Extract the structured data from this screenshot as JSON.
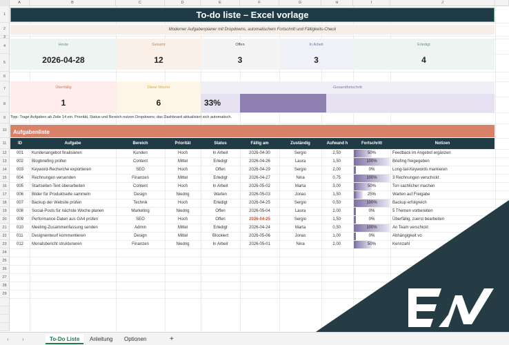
{
  "columns": [
    "A",
    "B",
    "C",
    "D",
    "E",
    "F",
    "G",
    "H",
    "I",
    "J"
  ],
  "rows": [
    "1",
    "2",
    "3",
    "4",
    "5",
    "6",
    "7",
    "8",
    "9",
    "10",
    "11",
    "12",
    "13",
    "14",
    "15",
    "16",
    "17",
    "18",
    "19",
    "20",
    "21",
    "22",
    "23",
    "24",
    "25",
    "26",
    "27",
    "28",
    "29"
  ],
  "title": "To-do liste – Excel vorlage",
  "subtitle": "Moderner Aufgabenplaner mit Dropdowns, automatischem Fortschritt und Fälligkeits-Check",
  "kpis": {
    "heute": {
      "label": "Heute",
      "value": "2026-04-28"
    },
    "gesamt": {
      "label": "Gesamt",
      "value": "12"
    },
    "offen": {
      "label": "Offen",
      "value": "3"
    },
    "inarbeit": {
      "label": "In Arbeit",
      "value": "3"
    },
    "erledigt": {
      "label": "Erledigt",
      "value": "4"
    },
    "ueberfaellig": {
      "label": "Überfällig",
      "value": "1"
    },
    "dieseWoche": {
      "label": "Diese Woche",
      "value": "6"
    },
    "gesamtfortschritt": {
      "label": "Gesamtfortschritt",
      "value": "33%",
      "fraction": 0.33
    }
  },
  "tip": "Tipp: Trage Aufgaben ab Zeile 14 ein. Priorität, Status und Bereich nutzen Dropdowns; das Dashboard aktualisiert sich automatisch.",
  "section": "Aufgabenliste",
  "headers": {
    "id": "ID",
    "task": "Aufgabe",
    "area": "Bereich",
    "prio": "Priorität",
    "status": "Status",
    "due": "Fällig am",
    "owner": "Zuständig",
    "effort": "Aufwand h",
    "progress": "Fortschritt",
    "notes": "Notizen"
  },
  "tasks": [
    {
      "id": "001",
      "task": "Kundenangebot finalisieren",
      "area": "Kunden",
      "prio": "Hoch",
      "status": "In Arbeit",
      "due": "2026-04-30",
      "owner": "Sergio",
      "effort": "2,50",
      "progress": "50%",
      "fraction": 0.5,
      "notes": "Feedback im Angebot ergänzen",
      "overdue": false
    },
    {
      "id": "002",
      "task": "Blogbriefing prüfen",
      "area": "Content",
      "prio": "Mittel",
      "status": "Erledigt",
      "due": "2026-04-26",
      "owner": "Laura",
      "effort": "1,50",
      "progress": "100%",
      "fraction": 1,
      "notes": "Briefing freigegeben",
      "overdue": false
    },
    {
      "id": "003",
      "task": "Keyword-Recherche exportieren",
      "area": "SEO",
      "prio": "Hoch",
      "status": "Offen",
      "due": "2026-04-29",
      "owner": "Sergio",
      "effort": "2,00",
      "progress": "0%",
      "fraction": 0,
      "notes": "Long-tail-Keywords markieren",
      "overdue": false
    },
    {
      "id": "004",
      "task": "Rechnungen versenden",
      "area": "Finanzen",
      "prio": "Mittel",
      "status": "Erledigt",
      "due": "2026-04-27",
      "owner": "Nina",
      "effort": "0,75",
      "progress": "100%",
      "fraction": 1,
      "notes": "3 Rechnungen verschickt",
      "overdue": false
    },
    {
      "id": "005",
      "task": "Startseiten-Text überarbeiten",
      "area": "Content",
      "prio": "Hoch",
      "status": "In Arbeit",
      "due": "2026-05-02",
      "owner": "Marta",
      "effort": "3,00",
      "progress": "50%",
      "fraction": 0.5,
      "notes": "Ton sachlicher machen",
      "overdue": false
    },
    {
      "id": "006",
      "task": "Bilder für Produktseite sammeln",
      "area": "Design",
      "prio": "Niedrig",
      "status": "Warten",
      "due": "2026-05-03",
      "owner": "Jonas",
      "effort": "1,50",
      "progress": "25%",
      "fraction": 0.25,
      "notes": "Warten auf Freigabe",
      "overdue": false
    },
    {
      "id": "007",
      "task": "Backup der Website prüfen",
      "area": "Technik",
      "prio": "Hoch",
      "status": "Erledigt",
      "due": "2026-04-25",
      "owner": "Sergio",
      "effort": "0,50",
      "progress": "100%",
      "fraction": 1,
      "notes": "Backup erfolgreich",
      "overdue": false
    },
    {
      "id": "008",
      "task": "Social-Posts für nächste Woche planen",
      "area": "Marketing",
      "prio": "Niedrig",
      "status": "Offen",
      "due": "2026-05-04",
      "owner": "Laura",
      "effort": "2,00",
      "progress": "0%",
      "fraction": 0,
      "notes": "5 Themen vorbereiten",
      "overdue": false
    },
    {
      "id": "009",
      "task": "Performance-Daten aus GA4 prüfen",
      "area": "SEO",
      "prio": "Hoch",
      "status": "Offen",
      "due": "2026-04-25",
      "owner": "Sergio",
      "effort": "1,50",
      "progress": "0%",
      "fraction": 0,
      "notes": "Überfällig, zuerst bearbeiten",
      "overdue": true
    },
    {
      "id": "010",
      "task": "Meeting-Zusammenfassung senden",
      "area": "Admin",
      "prio": "Mittel",
      "status": "Erledigt",
      "due": "2026-04-24",
      "owner": "Marta",
      "effort": "0,50",
      "progress": "100%",
      "fraction": 1,
      "notes": "An Team verschickt",
      "overdue": false
    },
    {
      "id": "011",
      "task": "Designentwurf kommentieren",
      "area": "Design",
      "prio": "Mittel",
      "status": "Blockiert",
      "due": "2026-05-06",
      "owner": "Jonas",
      "effort": "1,00",
      "progress": "0%",
      "fraction": 0,
      "notes": "Abhängigkeit vo",
      "overdue": false
    },
    {
      "id": "012",
      "task": "Monatsbericht strukturieren",
      "area": "Finanzen",
      "prio": "Niedrig",
      "status": "In Arbeit",
      "due": "2026-05-01",
      "owner": "Nina",
      "effort": "2,00",
      "progress": "50%",
      "fraction": 0.5,
      "notes": "Kennzahl",
      "overdue": false
    }
  ],
  "sheet_tabs": [
    "To-Do Liste",
    "Anleitung",
    "Optionen"
  ],
  "add_sheet": "+",
  "colors": {
    "dark": "#1f3b46",
    "accent": "#d9826a",
    "progress": "#8e7fb1",
    "overdue": "#d04a2a",
    "watermark": "#253c45"
  },
  "watermark_logo": "EW"
}
